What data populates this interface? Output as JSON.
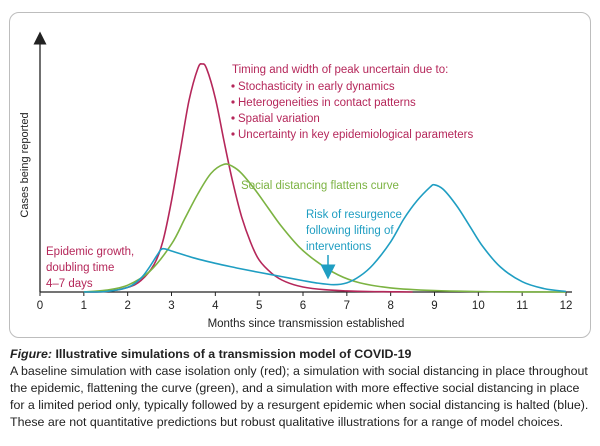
{
  "chart_data": {
    "type": "line",
    "xlabel": "Months since transmission established",
    "ylabel": "Cases being reported",
    "xlim": [
      0,
      12
    ],
    "xticks": [
      0,
      1,
      2,
      3,
      4,
      5,
      6,
      7,
      8,
      9,
      10,
      11,
      12
    ],
    "y_tick_labels": "none",
    "grid": false,
    "series": [
      {
        "color": "#b5275a",
        "label_group": "red",
        "x": [
          1.0,
          1.5,
          2.0,
          2.3,
          2.6,
          2.8,
          3.0,
          3.2,
          3.4,
          3.6,
          3.7,
          3.8,
          4.0,
          4.2,
          4.4,
          4.6,
          4.8,
          5.0,
          5.3,
          5.6,
          6.0,
          6.5,
          7.0,
          7.5,
          8.0,
          8.5
        ],
        "y": [
          0.0,
          0.2,
          2.0,
          5.0,
          12.0,
          22.0,
          40.0,
          62.0,
          84.0,
          98.0,
          100.0,
          98.0,
          85.0,
          66.0,
          48.0,
          33.0,
          22.0,
          14.0,
          8.0,
          4.5,
          2.2,
          1.0,
          0.5,
          0.2,
          0.1,
          0.0
        ]
      },
      {
        "color": "#7cb342",
        "label_group": "green",
        "x": [
          1.0,
          1.5,
          2.0,
          2.5,
          3.0,
          3.3,
          3.6,
          3.9,
          4.2,
          4.4,
          4.6,
          4.9,
          5.2,
          5.5,
          5.9,
          6.3,
          6.8,
          7.3,
          8.0,
          9.0,
          10.0,
          11.0,
          12.0
        ],
        "y": [
          0.0,
          0.8,
          3.0,
          9.0,
          21.0,
          32.0,
          43.0,
          52.0,
          56.0,
          55.0,
          52.0,
          45.0,
          37.0,
          29.0,
          20.0,
          13.5,
          7.5,
          4.0,
          1.8,
          0.6,
          0.2,
          0.05,
          0.0
        ]
      },
      {
        "color": "#1f9ec2",
        "label_group": "blue",
        "x": [
          1.0,
          1.5,
          2.0,
          2.3,
          2.5,
          2.7,
          2.8,
          3.0,
          3.5,
          4.0,
          4.5,
          5.0,
          5.5,
          6.0,
          6.3,
          6.7,
          7.0,
          7.3,
          7.6,
          8.0,
          8.3,
          8.6,
          8.9,
          9.0,
          9.2,
          9.5,
          9.8,
          10.1,
          10.5,
          11.0,
          11.5,
          12.0
        ],
        "y": [
          0.0,
          0.2,
          2.0,
          6.0,
          11.0,
          17.0,
          19.0,
          18.0,
          15.0,
          12.6,
          10.5,
          8.6,
          6.8,
          5.0,
          4.0,
          3.2,
          4.0,
          7.0,
          12.0,
          22.0,
          32.0,
          40.0,
          46.0,
          47.0,
          45.0,
          38.0,
          29.0,
          20.0,
          11.0,
          4.5,
          1.5,
          0.2
        ]
      }
    ],
    "annotations": {
      "red_heading": "Timing and width of peak uncertain due to:",
      "red_bullets": [
        "Stochasticity in early dynamics",
        "Heterogeneities in contact patterns",
        "Spatial variation",
        "Uncertainty in key epidemiological parameters"
      ],
      "red_growth": [
        "Epidemic growth,",
        "doubling time",
        "4–7 days"
      ],
      "green": "Social distancing flattens curve",
      "blue": [
        "Risk of resurgence",
        "following lifting of",
        "interventions"
      ]
    }
  },
  "caption": {
    "label": "Figure:",
    "title": "Illustrative simulations of a transmission model of COVID-19",
    "body": "A baseline simulation with case isolation only (red); a simulation with social distancing in place throughout the epidemic, flattening the curve (green), and a simulation with more effective social distancing in place for a limited period only, typically followed by a resurgent epidemic when social distancing is halted (blue). These are not quantitative predictions but robust qualitative illustrations for a range of model choices."
  },
  "colors": {
    "red": "#b5275a",
    "green": "#7cb342",
    "blue": "#1f9ec2",
    "axis": "#222222"
  }
}
